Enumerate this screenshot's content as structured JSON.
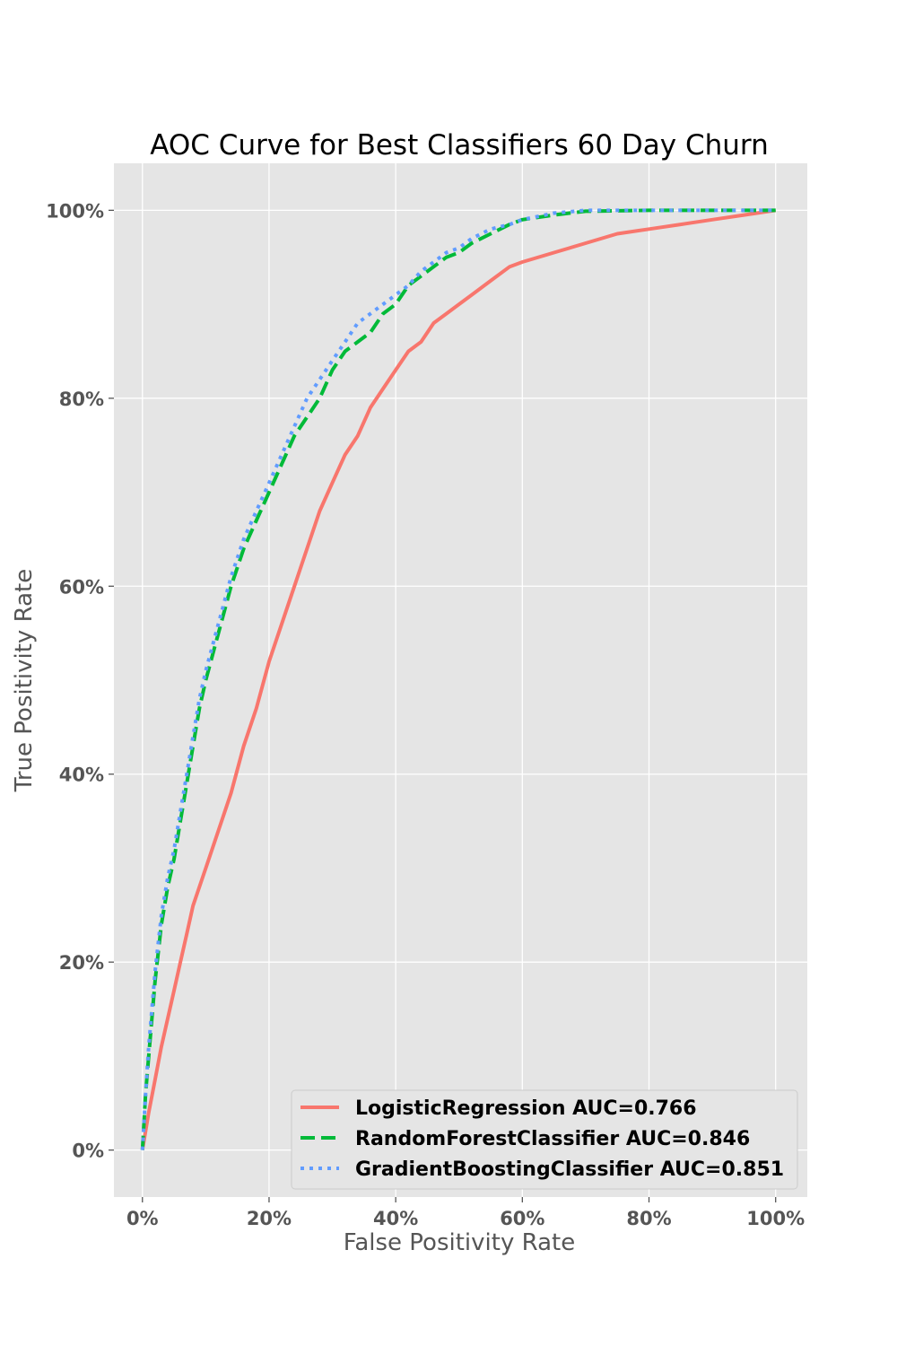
{
  "chart_data": {
    "type": "line",
    "title": "AOC Curve for Best Classifiers 60 Day Churn",
    "xlabel": "False Positivity Rate",
    "ylabel": "True Positivity Rate",
    "xlim": [
      -0.045,
      1.05
    ],
    "ylim": [
      -0.05,
      1.05
    ],
    "xticks": [
      0,
      0.2,
      0.4,
      0.6,
      0.8,
      1.0
    ],
    "yticks": [
      0,
      0.2,
      0.4,
      0.6,
      0.8,
      1.0
    ],
    "xtick_labels": [
      "0%",
      "20%",
      "40%",
      "60%",
      "80%",
      "100%"
    ],
    "ytick_labels": [
      "0%",
      "20%",
      "40%",
      "60%",
      "80%",
      "100%"
    ],
    "grid": true,
    "legend_position": "lower-right",
    "series": [
      {
        "name": "LogisticRegression AUC=0.766",
        "color": "#f8766d",
        "style": "solid",
        "x": [
          0,
          0.01,
          0.02,
          0.03,
          0.04,
          0.05,
          0.06,
          0.07,
          0.08,
          0.09,
          0.1,
          0.12,
          0.14,
          0.16,
          0.18,
          0.2,
          0.22,
          0.24,
          0.26,
          0.28,
          0.3,
          0.32,
          0.34,
          0.36,
          0.38,
          0.4,
          0.42,
          0.44,
          0.46,
          0.48,
          0.5,
          0.52,
          0.55,
          0.58,
          0.6,
          0.65,
          0.7,
          0.75,
          0.8,
          0.85,
          0.9,
          0.95,
          1.0
        ],
        "y": [
          0,
          0.04,
          0.075,
          0.11,
          0.14,
          0.17,
          0.2,
          0.23,
          0.26,
          0.28,
          0.3,
          0.34,
          0.38,
          0.43,
          0.47,
          0.52,
          0.56,
          0.6,
          0.64,
          0.68,
          0.71,
          0.74,
          0.76,
          0.79,
          0.81,
          0.83,
          0.85,
          0.86,
          0.88,
          0.89,
          0.9,
          0.91,
          0.925,
          0.94,
          0.945,
          0.955,
          0.965,
          0.975,
          0.98,
          0.985,
          0.99,
          0.995,
          1.0
        ]
      },
      {
        "name": "RandomForestClassifier AUC=0.846",
        "color": "#00ba38",
        "style": "dashed",
        "x": [
          0,
          0.005,
          0.01,
          0.02,
          0.03,
          0.04,
          0.05,
          0.06,
          0.07,
          0.08,
          0.09,
          0.1,
          0.12,
          0.14,
          0.16,
          0.18,
          0.2,
          0.22,
          0.24,
          0.26,
          0.28,
          0.3,
          0.32,
          0.34,
          0.36,
          0.38,
          0.4,
          0.42,
          0.44,
          0.46,
          0.48,
          0.5,
          0.52,
          0.55,
          0.58,
          0.6,
          0.65,
          0.7,
          0.8,
          0.9,
          1.0
        ],
        "y": [
          0,
          0.06,
          0.1,
          0.18,
          0.24,
          0.28,
          0.31,
          0.35,
          0.39,
          0.43,
          0.47,
          0.5,
          0.55,
          0.6,
          0.64,
          0.67,
          0.7,
          0.73,
          0.76,
          0.78,
          0.8,
          0.83,
          0.85,
          0.86,
          0.87,
          0.89,
          0.9,
          0.92,
          0.93,
          0.94,
          0.95,
          0.955,
          0.965,
          0.975,
          0.985,
          0.99,
          0.995,
          0.999,
          1.0,
          1.0,
          1.0
        ]
      },
      {
        "name": "GradientBoostingClassifier AUC=0.851",
        "color": "#619cff",
        "style": "dotted",
        "x": [
          0,
          0.005,
          0.01,
          0.02,
          0.03,
          0.04,
          0.05,
          0.06,
          0.07,
          0.08,
          0.09,
          0.1,
          0.12,
          0.14,
          0.16,
          0.18,
          0.2,
          0.22,
          0.24,
          0.26,
          0.28,
          0.3,
          0.32,
          0.34,
          0.36,
          0.38,
          0.4,
          0.42,
          0.44,
          0.46,
          0.48,
          0.5,
          0.52,
          0.55,
          0.58,
          0.6,
          0.65,
          0.7,
          0.8,
          0.9,
          1.0
        ],
        "y": [
          0,
          0.06,
          0.11,
          0.19,
          0.25,
          0.29,
          0.32,
          0.36,
          0.4,
          0.44,
          0.48,
          0.51,
          0.56,
          0.61,
          0.65,
          0.68,
          0.71,
          0.74,
          0.77,
          0.8,
          0.82,
          0.84,
          0.86,
          0.88,
          0.89,
          0.9,
          0.91,
          0.92,
          0.935,
          0.945,
          0.955,
          0.96,
          0.97,
          0.98,
          0.985,
          0.99,
          0.997,
          1.0,
          1.0,
          1.0,
          1.0
        ]
      }
    ]
  }
}
